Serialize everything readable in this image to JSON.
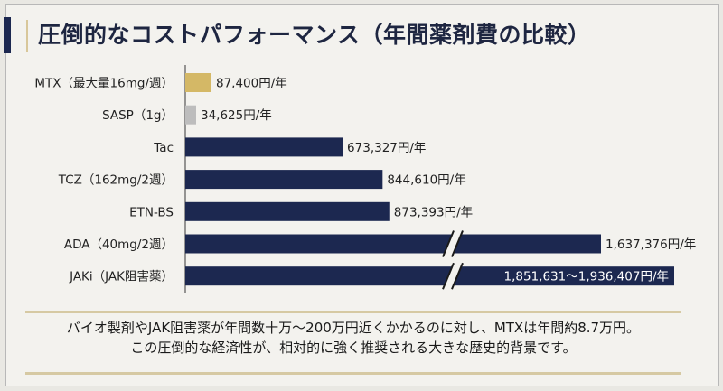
{
  "title": "圧倒的なコストパフォーマンス（年間薬剤費の比較）",
  "chart_data": {
    "type": "bar",
    "orientation": "horizontal",
    "title": "圧倒的なコストパフォーマンス（年間薬剤費の比較）",
    "xlabel": "",
    "ylabel": "",
    "unit": "円/年",
    "axis_break": true,
    "grid": false,
    "legend": "none",
    "categories": [
      "MTX（最大量16mg/週）",
      "SASP（1g）",
      "Tac",
      "TCZ（162mg/2週）",
      "ETN-BS",
      "ADA（40mg/2週）",
      "JAKi（JAK阻害薬）"
    ],
    "values": [
      87400,
      34625,
      673327,
      844610,
      873393,
      1637376,
      1936407
    ],
    "value_labels": [
      "87,400円/年",
      "34,625円/年",
      "673,327円/年",
      "844,610円/年",
      "873,393円/年",
      "1,637,376円/年",
      "1,851,631〜1,936,407円/年"
    ],
    "range_low": [
      null,
      null,
      null,
      null,
      null,
      null,
      1851631
    ],
    "bar_colors": [
      "#d4b866",
      "#bdbdbd",
      "#1c2850",
      "#1c2850",
      "#1c2850",
      "#1c2850",
      "#1c2850"
    ],
    "broken_bars": [
      false,
      false,
      false,
      false,
      false,
      true,
      true
    ]
  },
  "note": {
    "line1": "バイオ製剤やJAK阻害薬が年間数十万〜200万円近くかかるのに対し、MTXは年間約8.7万円。",
    "line2": "この圧倒的な経済性が、相対的に強く推奨される大きな歴史的背景です。"
  },
  "colors": {
    "navy": "#1c2850",
    "gold": "#d4b866",
    "gray": "#bdbdbd",
    "text": "#1e2641"
  }
}
